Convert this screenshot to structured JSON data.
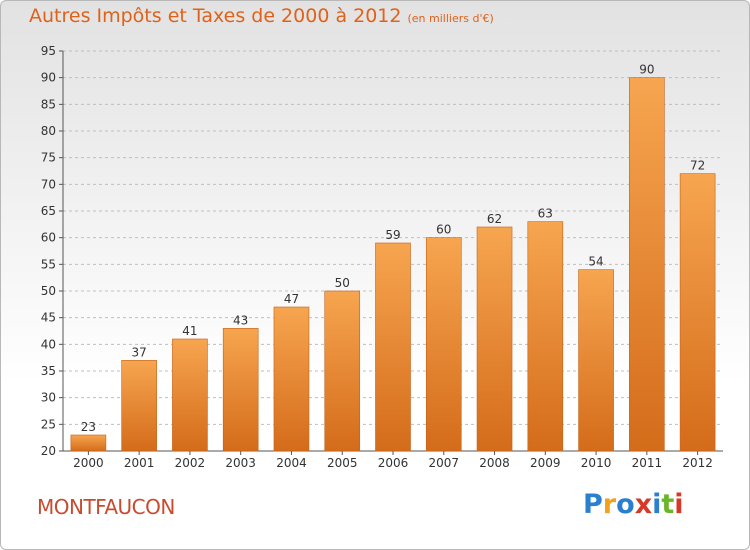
{
  "header": {
    "title": "Autres Impôts et Taxes de 2000 à 2012",
    "subtitle": "(en milliers d'€)"
  },
  "commune": "MONTFAUCON",
  "logo": {
    "text": "Proxiti",
    "letters": [
      {
        "ch": "P",
        "color": "#2a7fcf"
      },
      {
        "ch": "r",
        "color": "#f0a21a"
      },
      {
        "ch": "o",
        "color": "#2a7fcf"
      },
      {
        "ch": "x",
        "color": "#d63a26"
      },
      {
        "ch": "i",
        "color": "#2a7fcf"
      },
      {
        "ch": "t",
        "color": "#6bb52a"
      },
      {
        "ch": "i",
        "color": "#d63a26"
      }
    ]
  },
  "colors": {
    "bar_top": "#f7a550",
    "bar_bottom": "#d46c1a",
    "bar_border": "#c4621a",
    "title": "#e0621a",
    "commune": "#c94b2f",
    "grid": "#bfbfbf",
    "axis": "#555555"
  },
  "chart_data": {
    "type": "bar",
    "categories": [
      "2000",
      "2001",
      "2002",
      "2003",
      "2004",
      "2005",
      "2006",
      "2007",
      "2008",
      "2009",
      "2010",
      "2011",
      "2012"
    ],
    "values": [
      23,
      37,
      41,
      43,
      47,
      50,
      59,
      60,
      62,
      63,
      54,
      90,
      72
    ],
    "data_labels": [
      "23",
      "37",
      "41",
      "43",
      "47",
      "50",
      "59",
      "60",
      "62",
      "63",
      "54",
      "90",
      "72"
    ],
    "ylim": [
      20,
      95
    ],
    "yticks": [
      20,
      25,
      30,
      35,
      40,
      45,
      50,
      55,
      60,
      65,
      70,
      75,
      80,
      85,
      90,
      95
    ],
    "grid": "horizontal dashed",
    "legend": "none"
  }
}
